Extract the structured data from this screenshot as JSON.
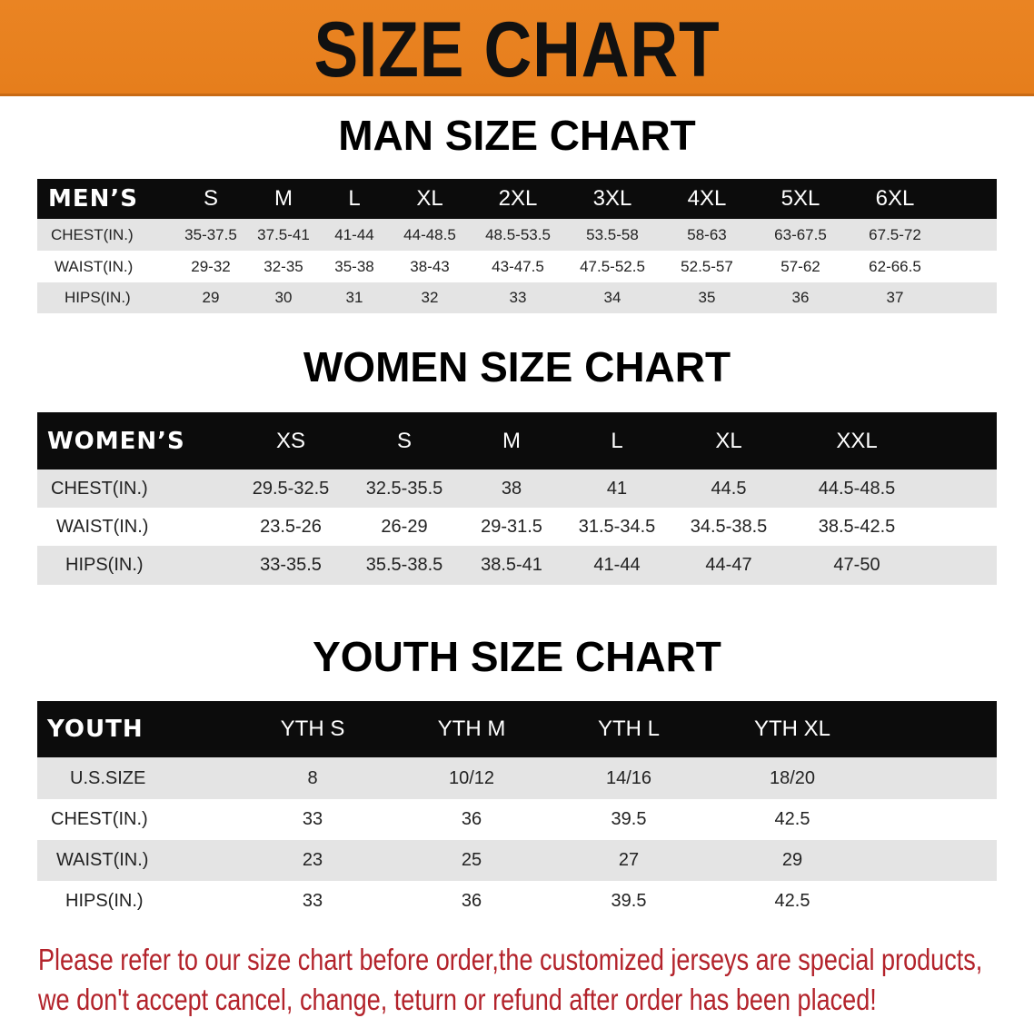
{
  "banner": {
    "title": "SIZE CHART",
    "color": "#e8801f"
  },
  "men": {
    "title": "MAN SIZE CHART",
    "header": [
      "MEN’S",
      "S",
      "M",
      "L",
      "XL",
      "2XL",
      "3XL",
      "4XL",
      "5XL",
      "6XL"
    ],
    "rows": [
      [
        "CHEST(IN.)",
        "35-37.5",
        "37.5-41",
        "41-44",
        "44-48.5",
        "48.5-53.5",
        "53.5-58",
        "58-63",
        "63-67.5",
        "67.5-72"
      ],
      [
        "WAIST(IN.)",
        "29-32",
        "32-35",
        "35-38",
        "38-43",
        "43-47.5",
        "47.5-52.5",
        "52.5-57",
        "57-62",
        "62-66.5"
      ],
      [
        "HIPS(IN.)",
        "29",
        "30",
        "31",
        "32",
        "33",
        "34",
        "35",
        "36",
        "37"
      ]
    ]
  },
  "women": {
    "title": "WOMEN SIZE CHART",
    "header": [
      "WOMEN’S",
      "XS",
      "S",
      "M",
      "L",
      "XL",
      "XXL"
    ],
    "rows": [
      [
        "CHEST(IN.)",
        "29.5-32.5",
        "32.5-35.5",
        "38",
        "41",
        "44.5",
        "44.5-48.5"
      ],
      [
        "WAIST(IN.)",
        "23.5-26",
        "26-29",
        "29-31.5",
        "31.5-34.5",
        "34.5-38.5",
        "38.5-42.5"
      ],
      [
        "HIPS(IN.)",
        "33-35.5",
        "35.5-38.5",
        "38.5-41",
        "41-44",
        "44-47",
        "47-50"
      ]
    ]
  },
  "youth": {
    "title": "YOUTH SIZE CHART",
    "header": [
      "YOUTH",
      "YTH S",
      "YTH M",
      "YTH L",
      "YTH XL"
    ],
    "rows": [
      [
        "U.S.SIZE",
        "8",
        "10/12",
        "14/16",
        "18/20"
      ],
      [
        "CHEST(IN.)",
        "33",
        "36",
        "39.5",
        "42.5"
      ],
      [
        "WAIST(IN.)",
        "23",
        "25",
        "27",
        "29"
      ],
      [
        "HIPS(IN.)",
        "33",
        "36",
        "39.5",
        "42.5"
      ]
    ]
  },
  "note": {
    "line1": "Please refer to our size chart before order,the customized jerseys are special products,",
    "line2": "we don't accept cancel, change, teturn or refund after order has been placed!",
    "color": "#b3232b"
  }
}
